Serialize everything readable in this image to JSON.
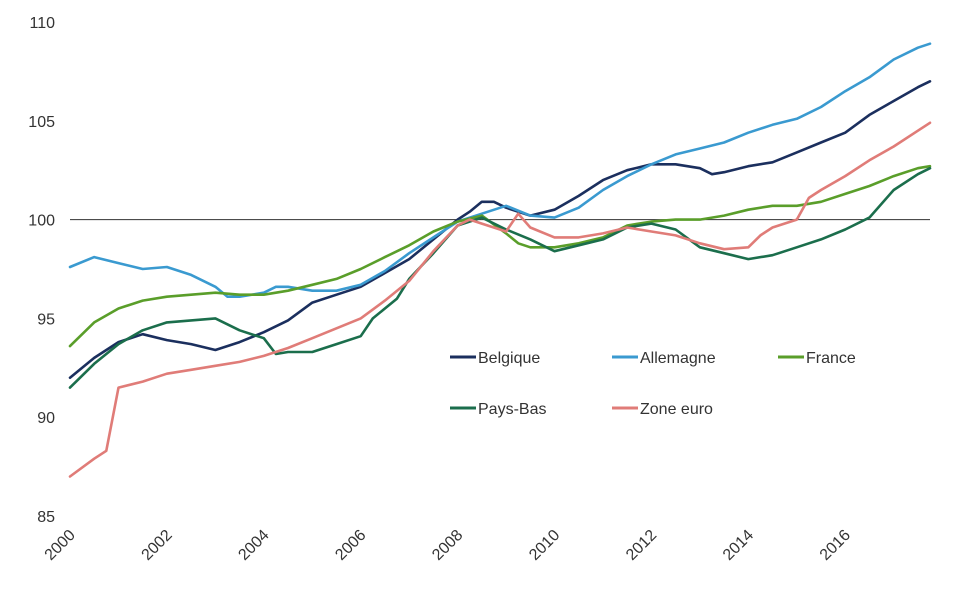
{
  "chart_data": {
    "type": "line",
    "title": "",
    "xlabel": "",
    "ylabel": "",
    "xlim": [
      2000,
      2017.75
    ],
    "ylim": [
      85,
      110
    ],
    "yticks": [
      85,
      90,
      95,
      100,
      105,
      110
    ],
    "xticks": [
      2000,
      2002,
      2004,
      2006,
      2008,
      2010,
      2012,
      2014,
      2016
    ],
    "reference_line": 100,
    "legend_position": "center-right",
    "series": [
      {
        "name": "Belgique",
        "color": "#1b2f5e",
        "points": [
          [
            2000,
            92.0
          ],
          [
            2000.5,
            93.0
          ],
          [
            2001,
            93.8
          ],
          [
            2001.5,
            94.2
          ],
          [
            2002,
            93.9
          ],
          [
            2002.5,
            93.7
          ],
          [
            2003,
            93.4
          ],
          [
            2003.5,
            93.8
          ],
          [
            2004,
            94.3
          ],
          [
            2004.5,
            94.9
          ],
          [
            2005,
            95.8
          ],
          [
            2005.5,
            96.2
          ],
          [
            2006,
            96.6
          ],
          [
            2006.5,
            97.3
          ],
          [
            2007,
            98.0
          ],
          [
            2007.5,
            99.0
          ],
          [
            2008,
            100.0
          ],
          [
            2008.25,
            100.4
          ],
          [
            2008.5,
            100.9
          ],
          [
            2008.75,
            100.9
          ],
          [
            2009,
            100.6
          ],
          [
            2009.5,
            100.2
          ],
          [
            2010,
            100.5
          ],
          [
            2010.5,
            101.2
          ],
          [
            2011,
            102.0
          ],
          [
            2011.5,
            102.5
          ],
          [
            2012,
            102.8
          ],
          [
            2012.5,
            102.8
          ],
          [
            2013,
            102.6
          ],
          [
            2013.25,
            102.3
          ],
          [
            2013.5,
            102.4
          ],
          [
            2014,
            102.7
          ],
          [
            2014.5,
            102.9
          ],
          [
            2015,
            103.4
          ],
          [
            2015.5,
            103.9
          ],
          [
            2016,
            104.4
          ],
          [
            2016.5,
            105.3
          ],
          [
            2017,
            106.0
          ],
          [
            2017.5,
            106.7
          ],
          [
            2017.75,
            107.0
          ]
        ]
      },
      {
        "name": "Allemagne",
        "color": "#3a9ad0",
        "points": [
          [
            2000,
            97.6
          ],
          [
            2000.5,
            98.1
          ],
          [
            2001,
            97.8
          ],
          [
            2001.5,
            97.5
          ],
          [
            2002,
            97.6
          ],
          [
            2002.5,
            97.2
          ],
          [
            2003,
            96.6
          ],
          [
            2003.25,
            96.1
          ],
          [
            2003.5,
            96.1
          ],
          [
            2004,
            96.3
          ],
          [
            2004.25,
            96.6
          ],
          [
            2004.5,
            96.6
          ],
          [
            2005,
            96.4
          ],
          [
            2005.5,
            96.4
          ],
          [
            2006,
            96.7
          ],
          [
            2006.5,
            97.4
          ],
          [
            2007,
            98.3
          ],
          [
            2007.5,
            99.1
          ],
          [
            2008,
            99.9
          ],
          [
            2008.5,
            100.3
          ],
          [
            2009,
            100.7
          ],
          [
            2009.5,
            100.2
          ],
          [
            2010,
            100.1
          ],
          [
            2010.5,
            100.6
          ],
          [
            2011,
            101.5
          ],
          [
            2011.5,
            102.2
          ],
          [
            2012,
            102.8
          ],
          [
            2012.5,
            103.3
          ],
          [
            2013,
            103.6
          ],
          [
            2013.5,
            103.9
          ],
          [
            2014,
            104.4
          ],
          [
            2014.5,
            104.8
          ],
          [
            2015,
            105.1
          ],
          [
            2015.5,
            105.7
          ],
          [
            2016,
            106.5
          ],
          [
            2016.5,
            107.2
          ],
          [
            2017,
            108.1
          ],
          [
            2017.5,
            108.7
          ],
          [
            2017.75,
            108.9
          ]
        ]
      },
      {
        "name": "France",
        "color": "#5a9e2a",
        "points": [
          [
            2000,
            93.6
          ],
          [
            2000.5,
            94.8
          ],
          [
            2001,
            95.5
          ],
          [
            2001.5,
            95.9
          ],
          [
            2002,
            96.1
          ],
          [
            2002.5,
            96.2
          ],
          [
            2003,
            96.3
          ],
          [
            2003.5,
            96.2
          ],
          [
            2004,
            96.2
          ],
          [
            2004.5,
            96.4
          ],
          [
            2005,
            96.7
          ],
          [
            2005.5,
            97.0
          ],
          [
            2006,
            97.5
          ],
          [
            2006.5,
            98.1
          ],
          [
            2007,
            98.7
          ],
          [
            2007.5,
            99.4
          ],
          [
            2008,
            99.9
          ],
          [
            2008.5,
            100.2
          ],
          [
            2009,
            99.3
          ],
          [
            2009.25,
            98.8
          ],
          [
            2009.5,
            98.6
          ],
          [
            2010,
            98.6
          ],
          [
            2010.5,
            98.8
          ],
          [
            2011,
            99.1
          ],
          [
            2011.5,
            99.7
          ],
          [
            2012,
            99.9
          ],
          [
            2012.5,
            100.0
          ],
          [
            2013,
            100.0
          ],
          [
            2013.5,
            100.2
          ],
          [
            2014,
            100.5
          ],
          [
            2014.5,
            100.7
          ],
          [
            2015,
            100.7
          ],
          [
            2015.5,
            100.9
          ],
          [
            2016,
            101.3
          ],
          [
            2016.5,
            101.7
          ],
          [
            2017,
            102.2
          ],
          [
            2017.5,
            102.6
          ],
          [
            2017.75,
            102.7
          ]
        ]
      },
      {
        "name": "Pays-Bas",
        "color": "#1b6e4c",
        "points": [
          [
            2000,
            91.5
          ],
          [
            2000.5,
            92.7
          ],
          [
            2001,
            93.7
          ],
          [
            2001.5,
            94.4
          ],
          [
            2002,
            94.8
          ],
          [
            2002.5,
            94.9
          ],
          [
            2003,
            95.0
          ],
          [
            2003.5,
            94.4
          ],
          [
            2004,
            94.0
          ],
          [
            2004.25,
            93.2
          ],
          [
            2004.5,
            93.3
          ],
          [
            2005,
            93.3
          ],
          [
            2005.5,
            93.7
          ],
          [
            2006,
            94.1
          ],
          [
            2006.25,
            95.0
          ],
          [
            2006.5,
            95.5
          ],
          [
            2006.75,
            96.0
          ],
          [
            2007,
            97.0
          ],
          [
            2007.5,
            98.3
          ],
          [
            2008,
            99.7
          ],
          [
            2008.5,
            100.1
          ],
          [
            2009,
            99.5
          ],
          [
            2009.5,
            99.0
          ],
          [
            2010,
            98.4
          ],
          [
            2010.5,
            98.7
          ],
          [
            2011,
            99.0
          ],
          [
            2011.5,
            99.6
          ],
          [
            2012,
            99.8
          ],
          [
            2012.5,
            99.5
          ],
          [
            2013,
            98.6
          ],
          [
            2013.5,
            98.3
          ],
          [
            2014,
            98.0
          ],
          [
            2014.5,
            98.2
          ],
          [
            2015,
            98.6
          ],
          [
            2015.5,
            99.0
          ],
          [
            2016,
            99.5
          ],
          [
            2016.5,
            100.1
          ],
          [
            2017,
            101.5
          ],
          [
            2017.5,
            102.3
          ],
          [
            2017.75,
            102.6
          ]
        ]
      },
      {
        "name": "Zone euro",
        "color": "#e07c78",
        "points": [
          [
            2000,
            87.0
          ],
          [
            2000.5,
            87.9
          ],
          [
            2000.75,
            88.3
          ],
          [
            2001,
            91.5
          ],
          [
            2001.5,
            91.8
          ],
          [
            2002,
            92.2
          ],
          [
            2002.5,
            92.4
          ],
          [
            2003,
            92.6
          ],
          [
            2003.5,
            92.8
          ],
          [
            2004,
            93.1
          ],
          [
            2004.5,
            93.5
          ],
          [
            2005,
            94.0
          ],
          [
            2005.5,
            94.5
          ],
          [
            2006,
            95.0
          ],
          [
            2006.5,
            95.9
          ],
          [
            2007,
            96.9
          ],
          [
            2007.5,
            98.4
          ],
          [
            2008,
            99.7
          ],
          [
            2008.25,
            100.0
          ],
          [
            2008.5,
            99.8
          ],
          [
            2009,
            99.4
          ],
          [
            2009.25,
            100.3
          ],
          [
            2009.5,
            99.6
          ],
          [
            2010,
            99.1
          ],
          [
            2010.5,
            99.1
          ],
          [
            2011,
            99.3
          ],
          [
            2011.5,
            99.6
          ],
          [
            2012,
            99.4
          ],
          [
            2012.5,
            99.2
          ],
          [
            2013,
            98.8
          ],
          [
            2013.5,
            98.5
          ],
          [
            2014,
            98.6
          ],
          [
            2014.25,
            99.2
          ],
          [
            2014.5,
            99.6
          ],
          [
            2015,
            100.0
          ],
          [
            2015.25,
            101.1
          ],
          [
            2015.5,
            101.5
          ],
          [
            2016,
            102.2
          ],
          [
            2016.5,
            103.0
          ],
          [
            2017,
            103.7
          ],
          [
            2017.5,
            104.5
          ],
          [
            2017.75,
            104.9
          ]
        ]
      }
    ]
  }
}
